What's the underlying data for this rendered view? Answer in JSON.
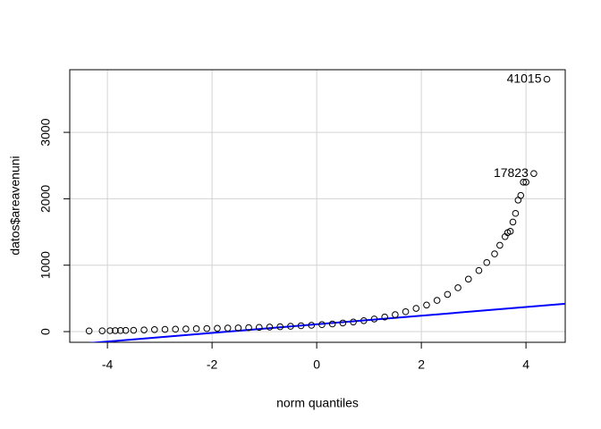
{
  "chart_data": {
    "type": "scatter",
    "xlabel": "norm quantiles",
    "ylabel": "datos$areavenuni",
    "x": [
      -4.35,
      -4.1,
      -3.95,
      -3.85,
      -3.75,
      -3.65,
      -3.5,
      -3.3,
      -3.1,
      -2.9,
      -2.7,
      -2.5,
      -2.3,
      -2.1,
      -1.9,
      -1.7,
      -1.5,
      -1.3,
      -1.1,
      -0.9,
      -0.7,
      -0.5,
      -0.3,
      -0.1,
      0.1,
      0.3,
      0.5,
      0.7,
      0.9,
      1.1,
      1.3,
      1.5,
      1.7,
      1.9,
      2.1,
      2.3,
      2.5,
      2.7,
      2.9,
      3.1,
      3.25,
      3.4,
      3.5,
      3.6,
      3.65,
      3.7,
      3.75,
      3.8,
      3.85,
      3.9,
      3.95,
      4.0,
      4.15,
      4.4
    ],
    "values": [
      10,
      12,
      14,
      15,
      16,
      18,
      20,
      25,
      30,
      33,
      36,
      40,
      43,
      46,
      50,
      53,
      56,
      60,
      64,
      68,
      73,
      80,
      88,
      95,
      105,
      115,
      130,
      145,
      165,
      190,
      220,
      255,
      300,
      350,
      400,
      470,
      560,
      660,
      790,
      920,
      1040,
      1170,
      1300,
      1430,
      1490,
      1510,
      1650,
      1780,
      1980,
      2050,
      2250,
      2250,
      2380,
      3800
    ],
    "color": "#000000",
    "reference_line": {
      "intercept": 110,
      "slope": 65,
      "color": "#0000ff"
    },
    "annotations": [
      {
        "text": "41015",
        "x": 4.4,
        "y": 3800
      },
      {
        "text": "17823",
        "x": 4.15,
        "y": 2380
      }
    ],
    "xlim": [
      -4.72,
      4.75
    ],
    "ylim": [
      -161,
      3943
    ],
    "xticks": [
      -4,
      -2,
      0,
      2,
      4
    ],
    "yticks": [
      0,
      1000,
      2000,
      3000
    ],
    "grid": true
  }
}
